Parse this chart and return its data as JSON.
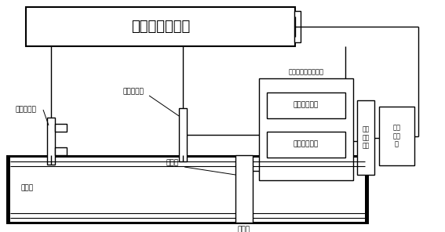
{
  "label_solar": "太阳能供电系统",
  "label_light": "光源发射器",
  "label_position": "位置传感器",
  "label_data": "数据采集及第三模块",
  "label_signal": "信号放大模块",
  "label_wireless_tx": "无线发射模块",
  "label_wireless_rx": "无线\n接收\n模块",
  "label_computer": "计算\n机系\n统",
  "label_base": "基准点",
  "label_wavesource": "波源点",
  "label_wavepiece": "波源件"
}
